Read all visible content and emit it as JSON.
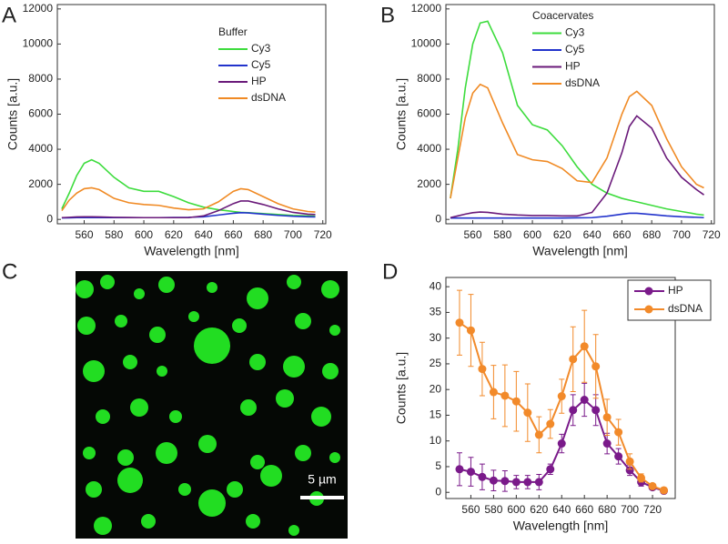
{
  "chart_data": [
    {
      "type": "line",
      "panel_label": "A",
      "legend_title": "Buffer",
      "xlabel": "Wavelength [nm]",
      "ylabel": "Counts [a.u.]",
      "x": [
        545,
        550,
        555,
        560,
        565,
        570,
        580,
        590,
        600,
        610,
        620,
        630,
        640,
        650,
        660,
        665,
        670,
        680,
        690,
        700,
        710,
        715
      ],
      "xlim": [
        542,
        722
      ],
      "ylim": [
        -250,
        12250
      ],
      "xticks": [
        560,
        580,
        600,
        620,
        640,
        660,
        680,
        700,
        720
      ],
      "yticks": [
        0,
        2000,
        4000,
        6000,
        8000,
        10000,
        12000
      ],
      "series": [
        {
          "name": "Cy3",
          "color": "#3ddc3d",
          "values": [
            600,
            1500,
            2500,
            3200,
            3400,
            3200,
            2400,
            1800,
            1600,
            1600,
            1300,
            950,
            700,
            550,
            450,
            400,
            380,
            330,
            280,
            230,
            200,
            180
          ]
        },
        {
          "name": "Cy5",
          "color": "#2233cc",
          "values": [
            80,
            90,
            100,
            100,
            100,
            100,
            100,
            100,
            100,
            100,
            110,
            120,
            150,
            250,
            350,
            380,
            370,
            300,
            230,
            180,
            150,
            140
          ]
        },
        {
          "name": "HP",
          "color": "#6a1a7a",
          "values": [
            100,
            120,
            140,
            150,
            150,
            140,
            120,
            110,
            100,
            100,
            100,
            100,
            200,
            500,
            900,
            1050,
            1050,
            850,
            600,
            400,
            300,
            280
          ]
        },
        {
          "name": "dsDNA",
          "color": "#f08a24",
          "values": [
            500,
            1100,
            1500,
            1750,
            1800,
            1700,
            1200,
            950,
            850,
            800,
            650,
            550,
            600,
            1000,
            1600,
            1750,
            1700,
            1300,
            900,
            600,
            450,
            420
          ]
        }
      ]
    },
    {
      "type": "line",
      "panel_label": "B",
      "legend_title": "Coacervates",
      "xlabel": "Wavelength [nm]",
      "ylabel": "Counts [a.u.]",
      "x": [
        545,
        550,
        555,
        560,
        565,
        570,
        580,
        590,
        600,
        610,
        620,
        630,
        640,
        650,
        660,
        665,
        670,
        680,
        690,
        700,
        710,
        715
      ],
      "xlim": [
        542,
        722
      ],
      "ylim": [
        -250,
        12250
      ],
      "xticks": [
        560,
        580,
        600,
        620,
        640,
        660,
        680,
        700,
        720
      ],
      "yticks": [
        0,
        2000,
        4000,
        6000,
        8000,
        10000,
        12000
      ],
      "series": [
        {
          "name": "Cy3",
          "color": "#3ddc3d",
          "values": [
            1200,
            4000,
            7500,
            10000,
            11200,
            11300,
            9500,
            6500,
            5400,
            5100,
            4200,
            3000,
            2000,
            1500,
            1200,
            1100,
            1000,
            800,
            600,
            450,
            300,
            250
          ]
        },
        {
          "name": "Cy5",
          "color": "#2233cc",
          "values": [
            80,
            80,
            80,
            80,
            80,
            80,
            80,
            80,
            80,
            80,
            80,
            90,
            100,
            180,
            300,
            350,
            350,
            280,
            200,
            150,
            120,
            100
          ]
        },
        {
          "name": "HP",
          "color": "#6a1a7a",
          "values": [
            100,
            200,
            300,
            380,
            420,
            400,
            300,
            250,
            220,
            220,
            200,
            200,
            400,
            1500,
            3800,
            5300,
            5900,
            5200,
            3500,
            2400,
            1700,
            1400
          ]
        },
        {
          "name": "dsDNA",
          "color": "#f08a24",
          "values": [
            1200,
            3500,
            5800,
            7200,
            7700,
            7500,
            5500,
            3700,
            3400,
            3300,
            2900,
            2200,
            2100,
            3500,
            6000,
            7000,
            7300,
            6500,
            4600,
            3000,
            2000,
            1800
          ]
        }
      ]
    },
    {
      "type": "image",
      "panel_label": "C",
      "scale_bar_label": "5 µm"
    },
    {
      "type": "line",
      "panel_label": "D",
      "markers": true,
      "xlabel": "Wavelength [nm]",
      "ylabel": "Counts [a.u.]",
      "x": [
        550,
        560,
        570,
        580,
        590,
        600,
        610,
        620,
        630,
        640,
        650,
        660,
        670,
        680,
        690,
        700,
        710,
        720,
        730
      ],
      "xlim": [
        538,
        740
      ],
      "ylim": [
        -1.2,
        41.8
      ],
      "xticks": [
        560,
        580,
        600,
        620,
        640,
        660,
        680,
        700,
        720
      ],
      "yticks": [
        0,
        5,
        10,
        15,
        20,
        25,
        30,
        35,
        40
      ],
      "series": [
        {
          "name": "HP",
          "color": "#7a1a8a",
          "values": [
            4.5,
            4,
            3,
            2.3,
            2.2,
            2,
            2,
            2,
            4.5,
            9.5,
            16,
            18,
            16,
            9.5,
            7,
            4.3,
            2,
            1,
            0.3
          ],
          "errors": [
            3.2,
            2.8,
            2.5,
            2,
            2,
            1.3,
            1.3,
            1.5,
            1,
            1.8,
            3,
            3.2,
            3,
            2,
            1.5,
            1,
            0.8,
            0.5,
            0.3
          ]
        },
        {
          "name": "dsDNA",
          "color": "#f28a2a",
          "values": [
            33,
            31.5,
            24,
            19.5,
            18.8,
            17.7,
            15.5,
            11.2,
            13.3,
            18.7,
            25.9,
            28.4,
            24.5,
            14.6,
            11.7,
            6,
            2.8,
            1.2,
            0.4
          ],
          "errors": [
            6.3,
            7,
            5.2,
            5.2,
            6,
            5.8,
            5.6,
            3.5,
            2.8,
            3.3,
            6.3,
            7,
            6.2,
            3.5,
            2.5,
            1.5,
            0.8,
            0.4,
            0.3
          ]
        }
      ]
    }
  ]
}
